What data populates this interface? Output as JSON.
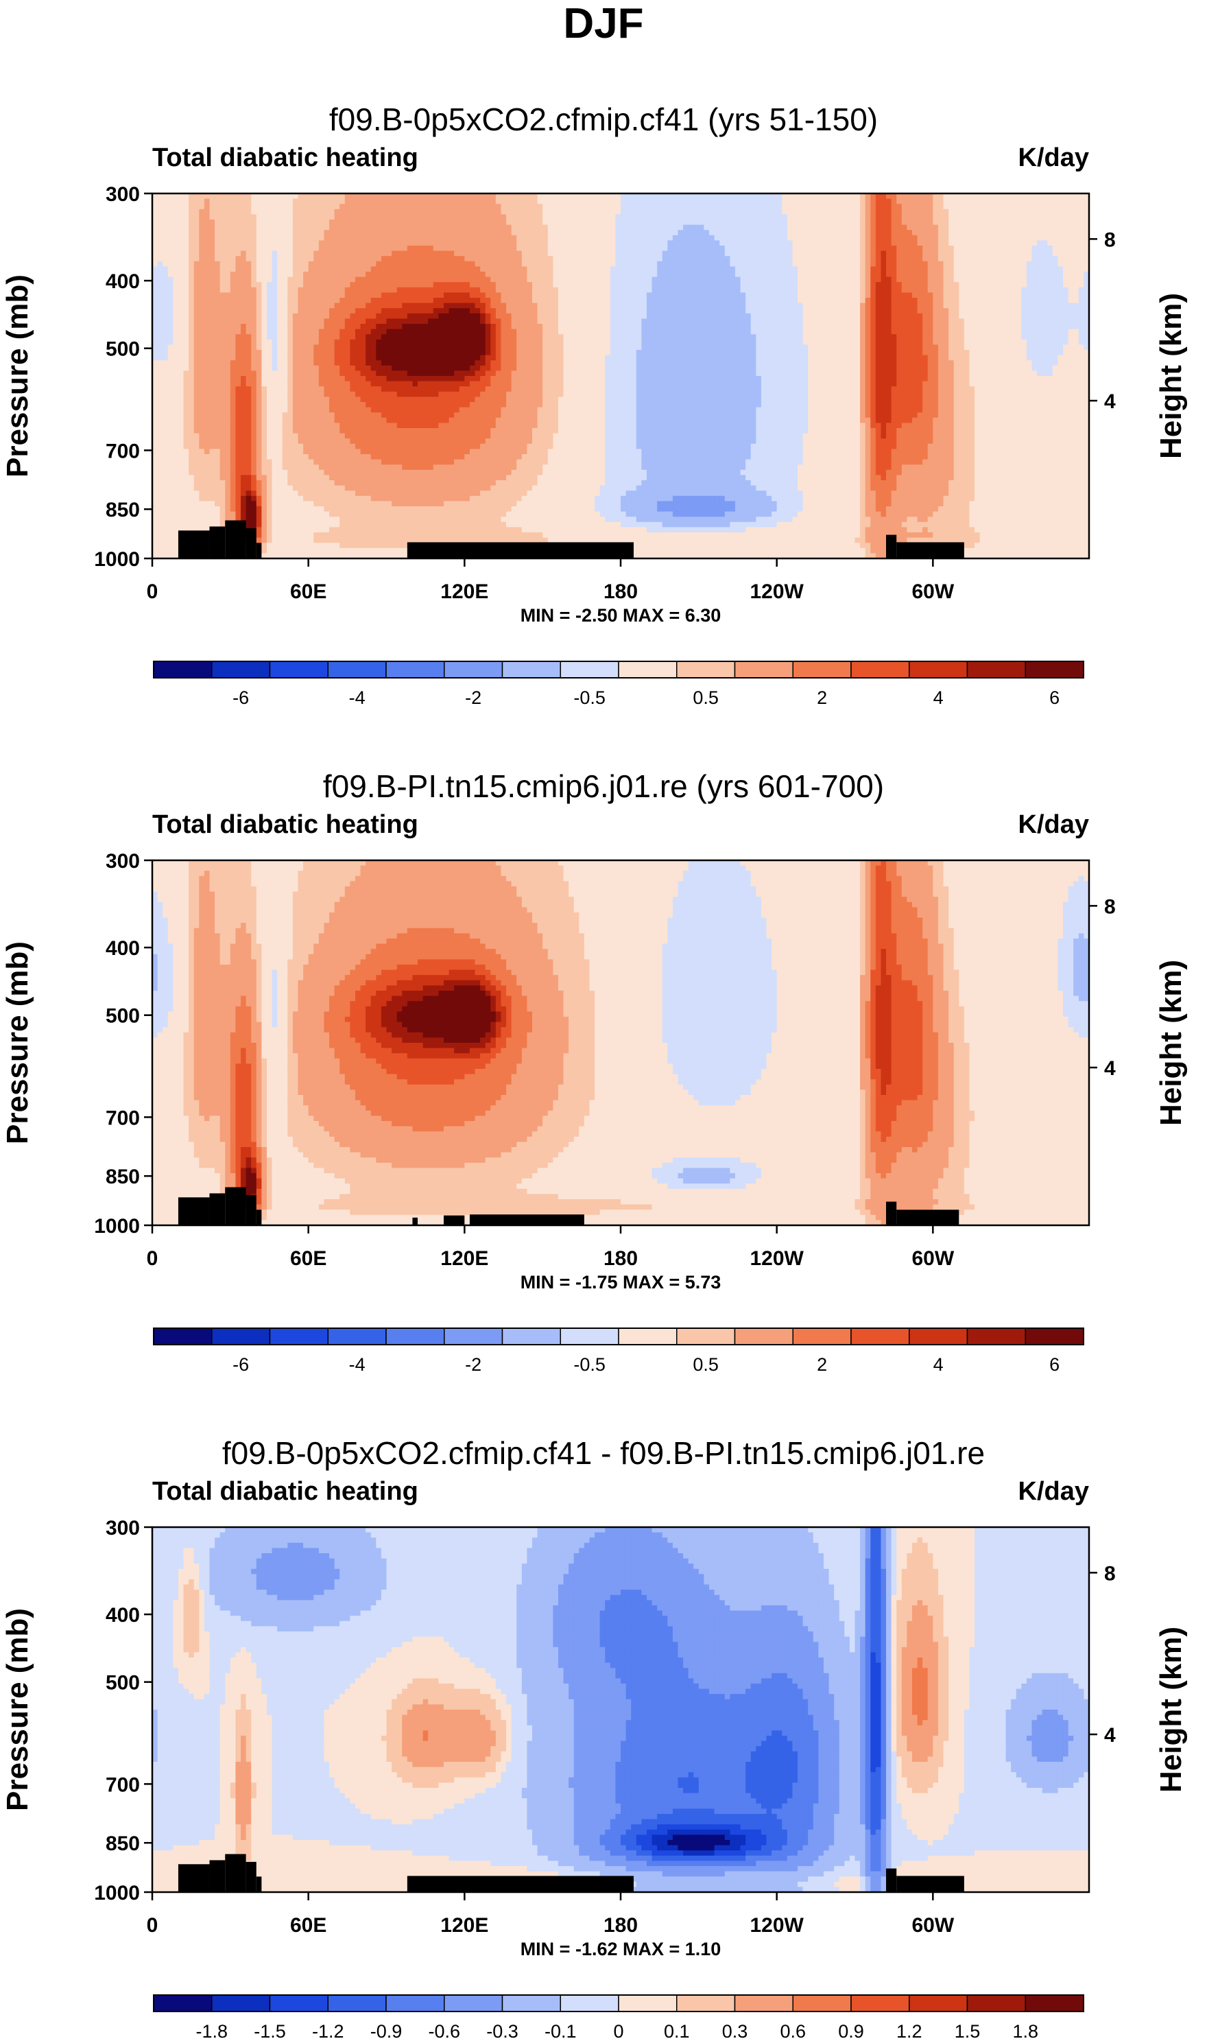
{
  "figure_title": "DJF",
  "chart_data": [
    {
      "type": "heatmap",
      "title": "f09.B-0p5xCO2.cfmip.cf41 (yrs 51-150)",
      "left_label": "Total diabatic heating",
      "right_label": "K/day",
      "ylabel": "Pressure (mb)",
      "ylabel_right": "Height (km)",
      "x_ticks": [
        "0",
        "60E",
        "120E",
        "180",
        "120W",
        "60W"
      ],
      "x_tick_values": [
        0,
        60,
        120,
        180,
        240,
        300
      ],
      "xlim": [
        0,
        360
      ],
      "y_ticks": [
        "300",
        "400",
        "500",
        "700",
        "850",
        "1000"
      ],
      "y_tick_values": [
        300,
        400,
        500,
        700,
        850,
        1000
      ],
      "ylim": [
        1000,
        300
      ],
      "right_ticks": [
        "8",
        "4"
      ],
      "right_tick_values": [
        8,
        4
      ],
      "stats": "MIN =  -2.50  MAX =   6.30",
      "colorbar_levels": [
        "-6",
        "-4",
        "-2",
        "-0.5",
        "0.5",
        "2",
        "4",
        "6"
      ],
      "colorbar_label_slots": [
        1,
        3,
        5,
        7,
        9,
        11,
        13,
        15
      ],
      "colorbar_colors": [
        "#08097a",
        "#0c2fbf",
        "#1c48e0",
        "#3563e8",
        "#577ff0",
        "#7c9bf5",
        "#a6bdf9",
        "#d2defb",
        "#fbe4d5",
        "#f9c6a9",
        "#f5a07a",
        "#f07a4c",
        "#e8542a",
        "#cc3414",
        "#a01a0c",
        "#720a0a"
      ],
      "topography": [
        [
          10,
          22,
          912
        ],
        [
          22,
          28,
          900
        ],
        [
          28,
          36,
          882
        ],
        [
          36,
          40,
          905
        ],
        [
          40,
          42,
          950
        ],
        [
          98,
          185,
          948
        ],
        [
          282,
          286,
          925
        ],
        [
          286,
          312,
          948
        ]
      ],
      "features": [
        {
          "x": 100,
          "p": 500,
          "rx": 24,
          "rp": 60,
          "v": 4.2
        },
        {
          "x": 120,
          "p": 480,
          "rx": 10,
          "rp": 55,
          "v": 5.2
        },
        {
          "x": 100,
          "p": 560,
          "rx": 42,
          "rp": 220,
          "v": 2.4
        },
        {
          "x": 110,
          "p": 520,
          "rx": 58,
          "rp": 360,
          "v": 1.2
        },
        {
          "x": 35,
          "p": 700,
          "rx": 6,
          "rp": 260,
          "v": 3.6
        },
        {
          "x": 38,
          "p": 880,
          "rx": 4,
          "rp": 80,
          "v": 6.0
        },
        {
          "x": 20,
          "p": 500,
          "rx": 8,
          "rp": 300,
          "v": 1.4
        },
        {
          "x": 47,
          "p": 480,
          "rx": 5,
          "rp": 180,
          "v": -1.6
        },
        {
          "x": 5,
          "p": 450,
          "rx": 10,
          "rp": 120,
          "v": -0.8
        },
        {
          "x": 205,
          "p": 580,
          "rx": 45,
          "rp": 420,
          "v": -1.5
        },
        {
          "x": 210,
          "p": 845,
          "rx": 26,
          "rp": 45,
          "v": -1.6
        },
        {
          "x": 280,
          "p": 500,
          "rx": 6,
          "rp": 400,
          "v": 3.8
        },
        {
          "x": 292,
          "p": 500,
          "rx": 10,
          "rp": 220,
          "v": 2.8
        },
        {
          "x": 298,
          "p": 700,
          "rx": 20,
          "rp": 320,
          "v": 1.2
        },
        {
          "x": 342,
          "p": 450,
          "rx": 12,
          "rp": 150,
          "v": -0.8
        },
        {
          "x": 180,
          "p": 940,
          "rx": 160,
          "rp": 40,
          "v": 0.5
        }
      ]
    },
    {
      "type": "heatmap",
      "title": "f09.B-PI.tn15.cmip6.j01.re (yrs 601-700)",
      "left_label": "Total diabatic heating",
      "right_label": "K/day",
      "ylabel": "Pressure (mb)",
      "ylabel_right": "Height (km)",
      "x_ticks": [
        "0",
        "60E",
        "120E",
        "180",
        "120W",
        "60W"
      ],
      "x_tick_values": [
        0,
        60,
        120,
        180,
        240,
        300
      ],
      "xlim": [
        0,
        360
      ],
      "y_ticks": [
        "300",
        "400",
        "500",
        "700",
        "850",
        "1000"
      ],
      "y_tick_values": [
        300,
        400,
        500,
        700,
        850,
        1000
      ],
      "ylim": [
        1000,
        300
      ],
      "right_ticks": [
        "8",
        "4"
      ],
      "right_tick_values": [
        8,
        4
      ],
      "stats": "MIN =  -1.75  MAX =   5.73",
      "colorbar_levels": [
        "-6",
        "-4",
        "-2",
        "-0.5",
        "0.5",
        "2",
        "4",
        "6"
      ],
      "colorbar_label_slots": [
        1,
        3,
        5,
        7,
        9,
        11,
        13,
        15
      ],
      "colorbar_colors": [
        "#08097a",
        "#0c2fbf",
        "#1c48e0",
        "#3563e8",
        "#577ff0",
        "#7c9bf5",
        "#a6bdf9",
        "#d2defb",
        "#fbe4d5",
        "#f9c6a9",
        "#f5a07a",
        "#f07a4c",
        "#e8542a",
        "#cc3414",
        "#a01a0c",
        "#720a0a"
      ],
      "topography": [
        [
          10,
          22,
          912
        ],
        [
          22,
          28,
          900
        ],
        [
          28,
          36,
          882
        ],
        [
          36,
          40,
          905
        ],
        [
          40,
          42,
          950
        ],
        [
          100,
          102,
          975
        ],
        [
          112,
          120,
          968
        ],
        [
          122,
          166,
          965
        ],
        [
          282,
          286,
          925
        ],
        [
          286,
          310,
          950
        ]
      ],
      "features": [
        {
          "x": 105,
          "p": 500,
          "rx": 26,
          "rp": 60,
          "v": 3.6
        },
        {
          "x": 123,
          "p": 500,
          "rx": 10,
          "rp": 55,
          "v": 4.6
        },
        {
          "x": 105,
          "p": 560,
          "rx": 44,
          "rp": 220,
          "v": 2.3
        },
        {
          "x": 110,
          "p": 530,
          "rx": 60,
          "rp": 360,
          "v": 1.0
        },
        {
          "x": 35,
          "p": 700,
          "rx": 6,
          "rp": 260,
          "v": 3.5
        },
        {
          "x": 38,
          "p": 880,
          "rx": 4,
          "rp": 80,
          "v": 5.5
        },
        {
          "x": 20,
          "p": 500,
          "rx": 8,
          "rp": 300,
          "v": 1.4
        },
        {
          "x": 47,
          "p": 500,
          "rx": 5,
          "rp": 180,
          "v": -1.3
        },
        {
          "x": 5,
          "p": 450,
          "rx": 10,
          "rp": 120,
          "v": -0.7
        },
        {
          "x": 215,
          "p": 480,
          "rx": 30,
          "rp": 250,
          "v": -1.0
        },
        {
          "x": 212,
          "p": 850,
          "rx": 22,
          "rp": 50,
          "v": -1.2
        },
        {
          "x": 280,
          "p": 500,
          "rx": 6,
          "rp": 400,
          "v": 3.5
        },
        {
          "x": 292,
          "p": 520,
          "rx": 10,
          "rp": 260,
          "v": 2.6
        },
        {
          "x": 298,
          "p": 700,
          "rx": 18,
          "rp": 300,
          "v": 1.2
        },
        {
          "x": 355,
          "p": 420,
          "rx": 8,
          "rp": 120,
          "v": -0.9
        },
        {
          "x": 180,
          "p": 940,
          "rx": 160,
          "rp": 40,
          "v": 0.5
        }
      ]
    },
    {
      "type": "heatmap",
      "title": "f09.B-0p5xCO2.cfmip.cf41 - f09.B-PI.tn15.cmip6.j01.re",
      "left_label": "Total diabatic heating",
      "right_label": "K/day",
      "ylabel": "Pressure (mb)",
      "ylabel_right": "Height (km)",
      "x_ticks": [
        "0",
        "60E",
        "120E",
        "180",
        "120W",
        "60W"
      ],
      "x_tick_values": [
        0,
        60,
        120,
        180,
        240,
        300
      ],
      "xlim": [
        0,
        360
      ],
      "y_ticks": [
        "300",
        "400",
        "500",
        "700",
        "850",
        "1000"
      ],
      "y_tick_values": [
        300,
        400,
        500,
        700,
        850,
        1000
      ],
      "ylim": [
        1000,
        300
      ],
      "right_ticks": [
        "8",
        "4"
      ],
      "right_tick_values": [
        8,
        4
      ],
      "stats": "MIN =  -1.62  MAX =   1.10",
      "colorbar_levels": [
        "-1.8",
        "-1.5",
        "-1.2",
        "-0.9",
        "-0.6",
        "-0.3",
        "-0.1",
        "0",
        "0.1",
        "0.3",
        "0.6",
        "0.9",
        "1.2",
        "1.5",
        "1.8"
      ],
      "colorbar_label_slots": [
        1,
        2,
        3,
        4,
        5,
        6,
        7,
        8,
        9,
        10,
        11,
        12,
        13,
        14,
        15
      ],
      "colorbar_colors": [
        "#08097a",
        "#0c2fbf",
        "#1c48e0",
        "#3563e8",
        "#577ff0",
        "#7c9bf5",
        "#a6bdf9",
        "#d2defb",
        "#fbe4d5",
        "#f9c6a9",
        "#f5a07a",
        "#f07a4c",
        "#e8542a",
        "#cc3414",
        "#a01a0c",
        "#720a0a"
      ],
      "topography": [
        [
          10,
          22,
          912
        ],
        [
          22,
          28,
          900
        ],
        [
          28,
          36,
          882
        ],
        [
          36,
          40,
          905
        ],
        [
          40,
          42,
          950
        ],
        [
          98,
          185,
          948
        ],
        [
          282,
          286,
          925
        ],
        [
          286,
          312,
          948
        ]
      ],
      "features": [
        {
          "x": 205,
          "p": 700,
          "rx": 42,
          "rp": 260,
          "v": -0.9
        },
        {
          "x": 210,
          "p": 850,
          "rx": 28,
          "rp": 50,
          "v": -1.4
        },
        {
          "x": 245,
          "p": 650,
          "rx": 18,
          "rp": 250,
          "v": -0.6
        },
        {
          "x": 278,
          "p": 550,
          "rx": 4,
          "rp": 450,
          "v": -1.3
        },
        {
          "x": 295,
          "p": 520,
          "rx": 8,
          "rp": 150,
          "v": 0.7
        },
        {
          "x": 105,
          "p": 600,
          "rx": 12,
          "rp": 80,
          "v": 0.6
        },
        {
          "x": 125,
          "p": 600,
          "rx": 10,
          "rp": 70,
          "v": 0.5
        },
        {
          "x": 55,
          "p": 350,
          "rx": 30,
          "rp": 60,
          "v": -0.4
        },
        {
          "x": 180,
          "p": 400,
          "rx": 30,
          "rp": 120,
          "v": -0.5
        },
        {
          "x": 35,
          "p": 720,
          "rx": 3,
          "rp": 150,
          "v": 0.6
        },
        {
          "x": 15,
          "p": 400,
          "rx": 4,
          "rp": 60,
          "v": 0.3
        },
        {
          "x": 345,
          "p": 600,
          "rx": 15,
          "rp": 100,
          "v": -0.4
        },
        {
          "x": 180,
          "p": 965,
          "rx": 130,
          "rp": 40,
          "v": 0.15
        }
      ]
    }
  ]
}
